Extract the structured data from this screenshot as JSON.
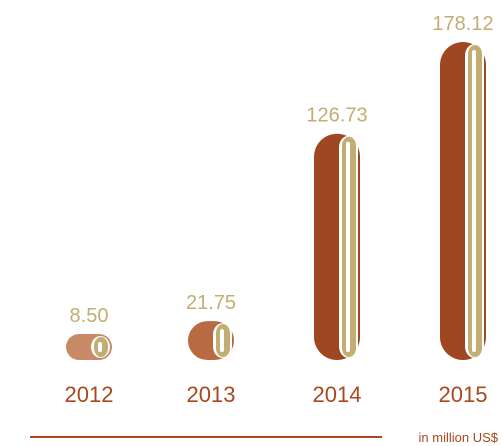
{
  "chart_data": {
    "type": "bar",
    "categories": [
      "2012",
      "2013",
      "2014",
      "2015"
    ],
    "values": [
      8.5,
      21.75,
      126.73,
      178.12
    ],
    "value_labels": [
      "8.50",
      "21.75",
      "126.73",
      "178.12"
    ],
    "unit_label": "in million US$",
    "ylim": [
      0,
      178.12
    ],
    "grid": false,
    "legend": "none"
  },
  "colors": {
    "value_text": "#c2ad73",
    "year_text": "#a8481f",
    "axis_line": "#a8481f",
    "unit_text": "#a8481f",
    "ribbon_inner": "#c2ad73",
    "ribbon_outer": [
      "#c98a68",
      "#b86a42",
      "#9e4720",
      "#9e4720"
    ],
    "ribbon_gap": "#ffffff"
  }
}
